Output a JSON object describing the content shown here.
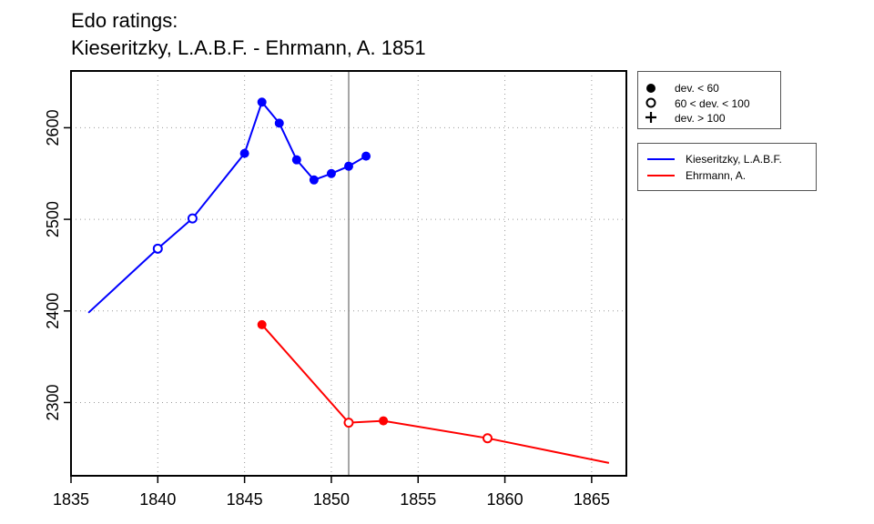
{
  "title": [
    "Edo ratings:",
    "Kieseritzky, L.A.B.F. - Ehrmann, A. 1851"
  ],
  "marker_legend": [
    {
      "marker": "filled-circle",
      "label": "dev. < 60"
    },
    {
      "marker": "open-circle",
      "label": "60 < dev. < 100"
    },
    {
      "marker": "plus",
      "label": "dev. > 100"
    }
  ],
  "colors": {
    "kieseritzky": "#0000ff",
    "ehrmann": "#ff0000",
    "reference_line": "#888888"
  },
  "chart_data": {
    "type": "line",
    "title": "Edo ratings:\nKieseritzky, L.A.B.F. - Ehrmann, A. 1851",
    "xlabel": "",
    "ylabel": "",
    "xlim": [
      1835,
      1867
    ],
    "ylim": [
      2220,
      2662
    ],
    "x_ticks": [
      1835,
      1840,
      1845,
      1850,
      1855,
      1860,
      1865
    ],
    "y_ticks": [
      2300,
      2400,
      2500,
      2600
    ],
    "grid": "dotted",
    "reference_x": 1851,
    "legend_placement": "right, outside plot",
    "series": [
      {
        "name": "Kieseritzky, L.A.B.F.",
        "color": "#0000ff",
        "points": [
          {
            "x": 1836,
            "y": 2398,
            "marker": "none"
          },
          {
            "x": 1840,
            "y": 2468,
            "marker": "open"
          },
          {
            "x": 1842,
            "y": 2501,
            "marker": "open"
          },
          {
            "x": 1845,
            "y": 2572,
            "marker": "filled"
          },
          {
            "x": 1846,
            "y": 2628,
            "marker": "filled"
          },
          {
            "x": 1847,
            "y": 2605,
            "marker": "filled"
          },
          {
            "x": 1848,
            "y": 2565,
            "marker": "filled"
          },
          {
            "x": 1849,
            "y": 2543,
            "marker": "filled"
          },
          {
            "x": 1850,
            "y": 2550,
            "marker": "filled"
          },
          {
            "x": 1851,
            "y": 2558,
            "marker": "filled"
          },
          {
            "x": 1852,
            "y": 2569,
            "marker": "filled"
          }
        ]
      },
      {
        "name": "Ehrmann, A.",
        "color": "#ff0000",
        "points": [
          {
            "x": 1846,
            "y": 2385,
            "marker": "filled"
          },
          {
            "x": 1851,
            "y": 2278,
            "marker": "open"
          },
          {
            "x": 1853,
            "y": 2280,
            "marker": "filled"
          },
          {
            "x": 1859,
            "y": 2261,
            "marker": "open"
          },
          {
            "x": 1866,
            "y": 2234,
            "marker": "none"
          }
        ]
      }
    ]
  }
}
